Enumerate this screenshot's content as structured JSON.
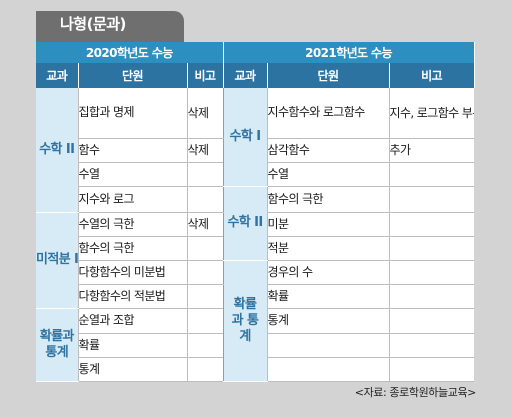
{
  "title": "나형(문과)",
  "year_headers": [
    "2020학년도 수능",
    "2021학년도 수능"
  ],
  "column_headers": [
    "교과",
    "단원",
    "비고",
    "교과",
    "단원",
    "비고"
  ],
  "table_rows": [
    {
      "s2020": "수학 II",
      "u2020": "집합과 명제",
      "n2020": "삭제",
      "s2021": "수학 I",
      "u2021": "지수함수와 로그함수",
      "n2021": "지수, 로그함수 부분 추가"
    },
    {
      "s2020": "",
      "u2020": "함수",
      "n2020": "삭제",
      "s2021": "",
      "u2021": "삼각함수",
      "n2021": "추가"
    },
    {
      "s2020": "",
      "u2020": "수열",
      "n2020": "",
      "s2021": "",
      "u2021": "수열",
      "n2021": ""
    },
    {
      "s2020": "",
      "u2020": "지수와 로그",
      "n2020": "",
      "s2021": "수학 II",
      "u2021": "함수의 극한",
      "n2021": ""
    },
    {
      "s2020": "미적분 I",
      "u2020": "수열의 극한",
      "n2020": "삭제",
      "s2021": "",
      "u2021": "미분",
      "n2021": ""
    },
    {
      "s2020": "",
      "u2020": "함수의 극한",
      "n2020": "",
      "s2021": "",
      "u2021": "적분",
      "n2021": ""
    },
    {
      "s2020": "",
      "u2020": "다항함수의 미분법",
      "n2020": "",
      "s2021": "확률과 통계",
      "u2021": "경우의 수",
      "n2021": ""
    },
    {
      "s2020": "",
      "u2020": "다항함수의 적분법",
      "n2020": "",
      "s2021": "",
      "u2021": "확률",
      "n2021": ""
    },
    {
      "s2020": "확률과 통계",
      "u2020": "순열과 조합",
      "n2020": "",
      "s2021": "",
      "u2021": "통계",
      "n2021": ""
    },
    {
      "s2020": "",
      "u2020": "확률",
      "n2020": "",
      "s2021": "",
      "u2021": "",
      "n2021": ""
    },
    {
      "s2020": "",
      "u2020": "통계",
      "n2020": "",
      "s2021": "",
      "u2021": "",
      "n2021": ""
    }
  ],
  "source": "<자료: 종로학원하늘교육>",
  "colors": {
    "header_dark": "#2c73a2",
    "header_light": "#2d8fbf",
    "subject_bg": "#d7ebf6",
    "subject_text": "#2f73a2"
  }
}
